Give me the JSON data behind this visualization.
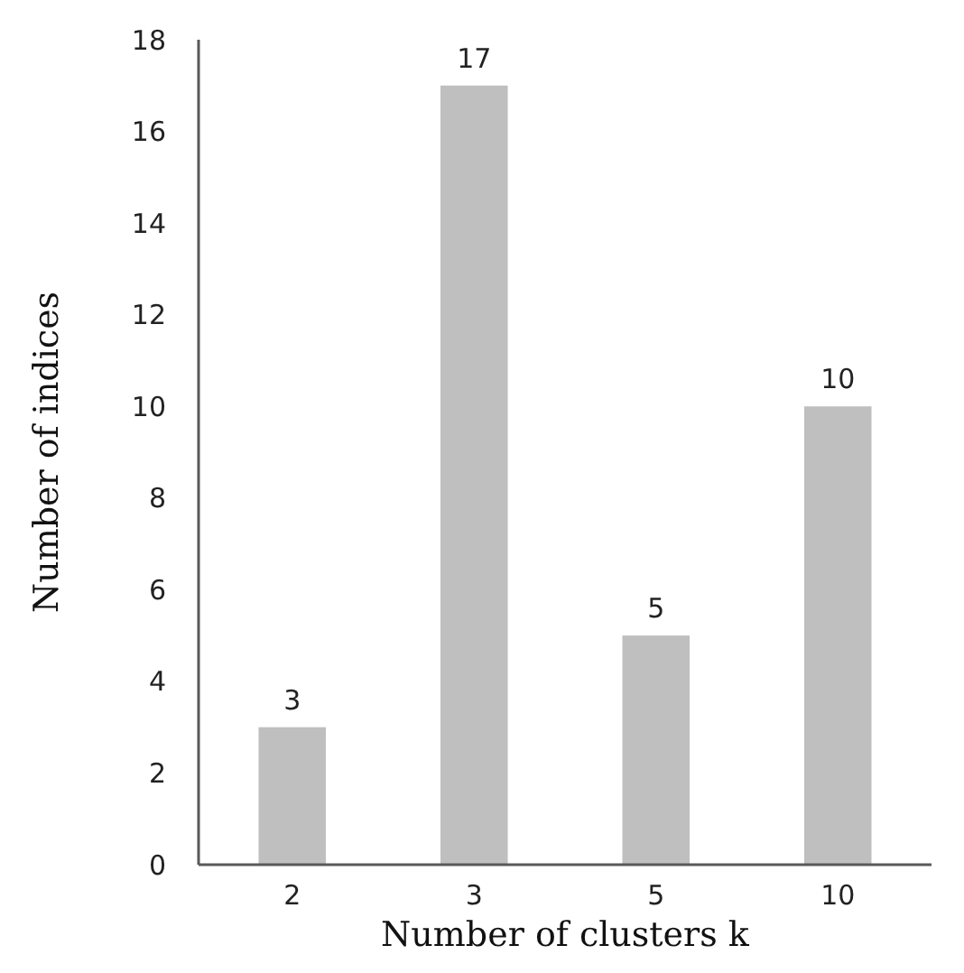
{
  "chart_data": {
    "type": "bar",
    "xlabel": "Number of clusters k",
    "ylabel": "Number of indices",
    "categories": [
      "2",
      "3",
      "5",
      "10"
    ],
    "values": [
      3,
      17,
      5,
      10
    ],
    "color": "#bfbfbf",
    "ylim": [
      0,
      18
    ],
    "yticks": [
      0,
      2,
      4,
      6,
      8,
      10,
      12,
      14,
      16,
      18
    ],
    "data_labels": true
  }
}
